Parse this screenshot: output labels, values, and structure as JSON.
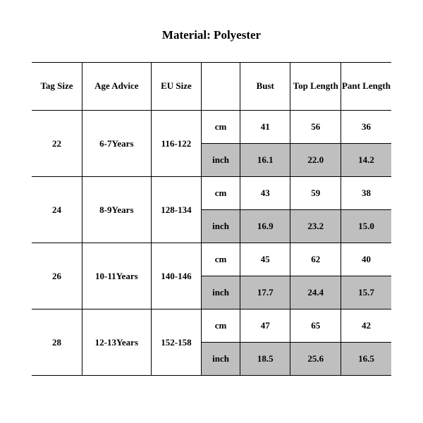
{
  "title": "Material: Polyester",
  "headers": {
    "tag": "Tag Size",
    "age": "Age Advice",
    "eu": "EU Size",
    "unit": "",
    "bust": "Bust",
    "top": "Top Length",
    "pant": "Pant Length"
  },
  "units": {
    "cm": "cm",
    "inch": "inch"
  },
  "rows": [
    {
      "tag": "22",
      "age": "6-7Years",
      "eu": "116-122",
      "cm": {
        "bust": "41",
        "top": "56",
        "pant": "36"
      },
      "inch": {
        "bust": "16.1",
        "top": "22.0",
        "pant": "14.2"
      }
    },
    {
      "tag": "24",
      "age": "8-9Years",
      "eu": "128-134",
      "cm": {
        "bust": "43",
        "top": "59",
        "pant": "38"
      },
      "inch": {
        "bust": "16.9",
        "top": "23.2",
        "pant": "15.0"
      }
    },
    {
      "tag": "26",
      "age": "10-11Years",
      "eu": "140-146",
      "cm": {
        "bust": "45",
        "top": "62",
        "pant": "40"
      },
      "inch": {
        "bust": "17.7",
        "top": "24.4",
        "pant": "15.7"
      }
    },
    {
      "tag": "28",
      "age": "12-13Years",
      "eu": "152-158",
      "cm": {
        "bust": "47",
        "top": "65",
        "pant": "42"
      },
      "inch": {
        "bust": "18.5",
        "top": "25.6",
        "pant": "16.5"
      }
    }
  ],
  "style": {
    "background": "#ffffff",
    "text_color": "#000000",
    "border_color": "#000000",
    "shade_color": "#bfbfbf",
    "title_fontsize": 17,
    "cell_fontsize": 13,
    "font_family": "Times New Roman",
    "header_row_height": 68,
    "data_row_height": 47,
    "col_widths": {
      "tag": 60,
      "age": 82,
      "eu": 60,
      "unit": 46,
      "val": 60
    }
  }
}
